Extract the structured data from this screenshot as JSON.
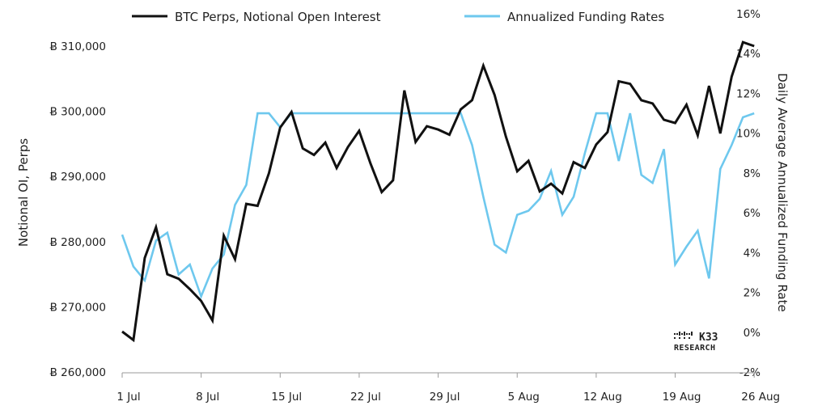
{
  "chart_data": {
    "type": "line",
    "title": "",
    "xlabel": "",
    "ylabel": "Notional OI, Perps",
    "y2label": "Daily Average Annualized Funding Rate",
    "x_tick_labels": [
      "1 Jul",
      "8 Jul",
      "15 Jul",
      "22 Jul",
      "29 Jul",
      "5 Aug",
      "12 Aug",
      "19 Aug",
      "26 Aug"
    ],
    "y_tick_labels": [
      "Ƀ 260,000",
      "Ƀ 270,000",
      "Ƀ 280,000",
      "Ƀ 290,000",
      "Ƀ 300,000",
      "Ƀ 310,000"
    ],
    "y2_tick_labels": [
      "-2%",
      "0%",
      "2%",
      "4%",
      "6%",
      "8%",
      "10%",
      "12%",
      "14%",
      "16%"
    ],
    "ylim": [
      260000,
      310000
    ],
    "y2lim": [
      -2,
      16
    ],
    "x_start_label": "1 Jul",
    "x_step_days": 1,
    "legend_position": "top",
    "grid": false,
    "series": [
      {
        "name": "BTC Perps, Notional Open Interest",
        "axis": "left",
        "color": "#111111",
        "values": [
          266200,
          264900,
          277500,
          282200,
          275000,
          274300,
          272700,
          270900,
          267900,
          280900,
          277300,
          285800,
          285500,
          290500,
          297500,
          299900,
          294300,
          293300,
          295200,
          291300,
          294500,
          297000,
          292000,
          287600,
          289400,
          303200,
          295300,
          297700,
          297200,
          296400,
          300300,
          301700,
          307000,
          302500,
          296100,
          290800,
          292400,
          287700,
          288900,
          287400,
          292200,
          291300,
          294900,
          296800,
          304600,
          304200,
          301700,
          301200,
          298700,
          298200,
          301000,
          296300,
          303900,
          296600,
          305300,
          310600,
          310000
        ]
      },
      {
        "name": "Annualized Funding Rates",
        "axis": "right",
        "color": "#6EC8EE",
        "values": [
          4.9,
          3.3,
          2.6,
          4.6,
          5.0,
          2.9,
          3.4,
          1.8,
          3.2,
          3.9,
          6.4,
          7.4,
          11.0,
          11.0,
          10.3,
          11.0,
          11.0,
          11.0,
          11.0,
          11.0,
          11.0,
          11.0,
          11.0,
          11.0,
          11.0,
          11.0,
          11.0,
          11.0,
          11.0,
          11.0,
          11.0,
          9.4,
          6.8,
          4.4,
          4.0,
          5.9,
          6.1,
          6.7,
          8.1,
          5.9,
          6.8,
          9.0,
          11.0,
          11.0,
          8.6,
          11.0,
          7.9,
          7.5,
          9.2,
          3.4,
          4.3,
          5.1,
          2.7,
          8.2,
          9.4,
          10.8,
          11.0
        ]
      }
    ]
  },
  "logo": {
    "line1": "K33",
    "line2": "RESEARCH"
  }
}
